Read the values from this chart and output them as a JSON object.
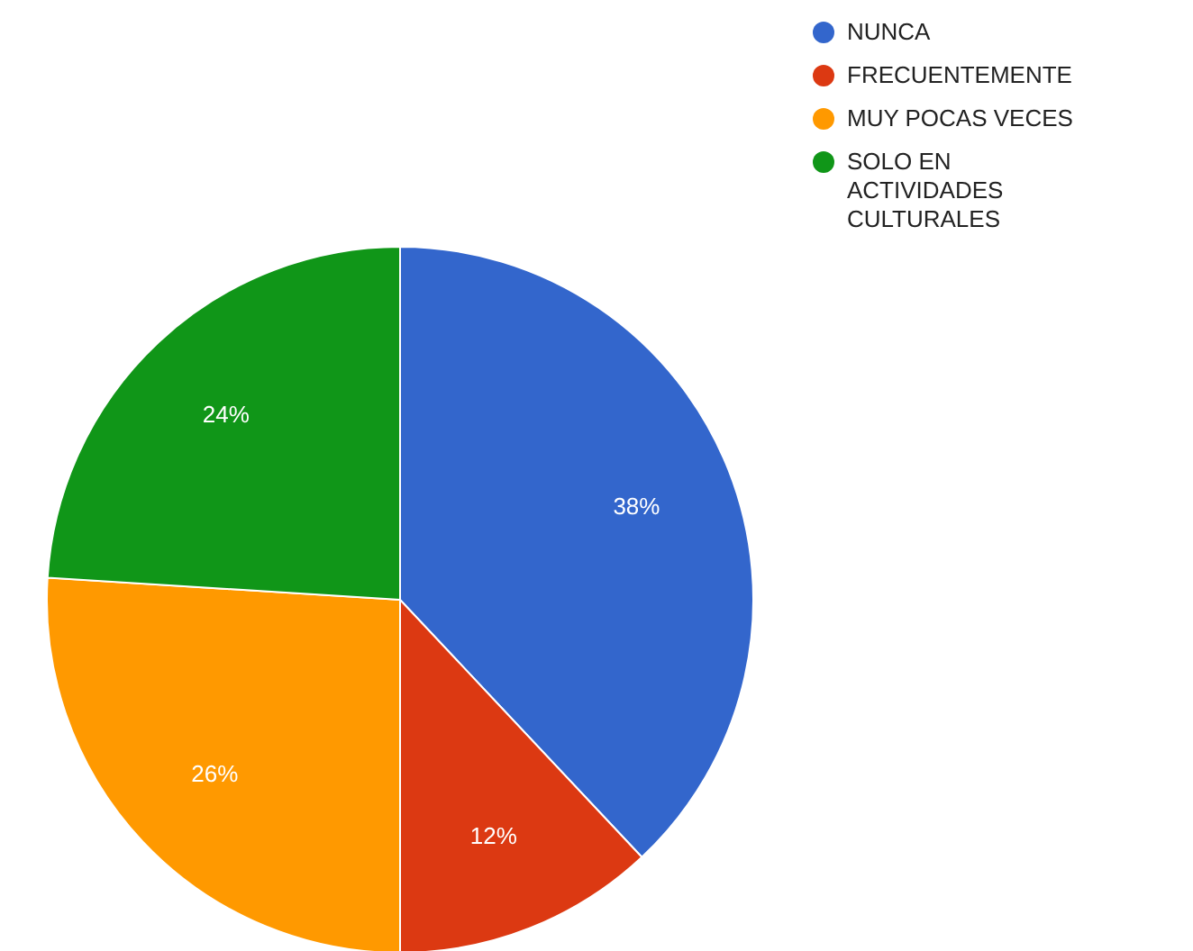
{
  "chart_data": {
    "type": "pie",
    "categories": [
      "NUNCA",
      "FRECUENTEMENTE",
      "MUY POCAS VECES",
      "SOLO EN ACTIVIDADES CULTURALES"
    ],
    "values": [
      38,
      12,
      26,
      24
    ],
    "colors": [
      "#3366cc",
      "#dc3912",
      "#ff9900",
      "#109618"
    ],
    "value_labels": [
      "38%",
      "12%",
      "26%",
      "24%"
    ],
    "legend": "top right"
  }
}
